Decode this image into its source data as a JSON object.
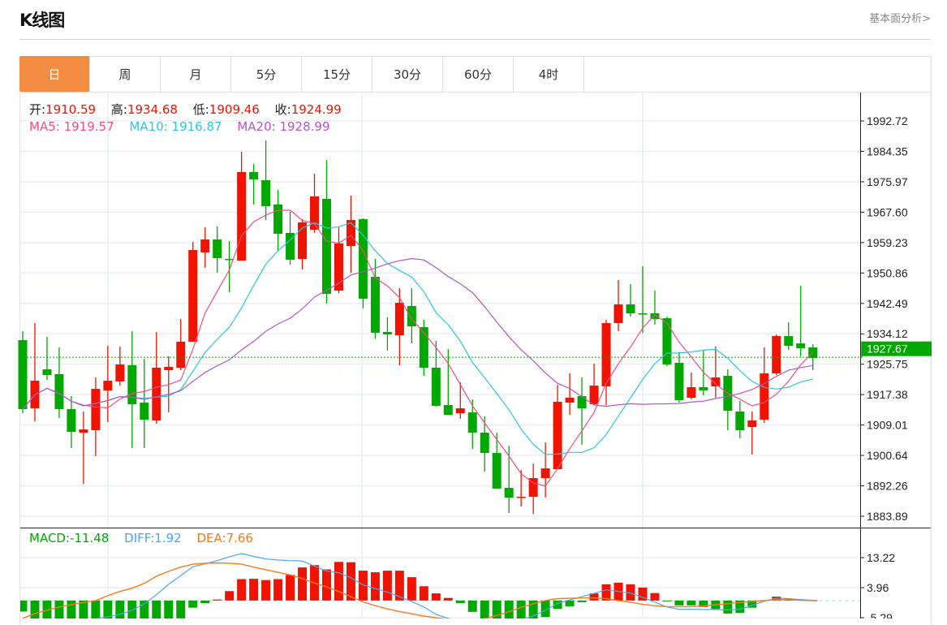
{
  "header": {
    "title": "K线图",
    "link": "基本面分析>"
  },
  "tabs": [
    {
      "label": "日",
      "active": true
    },
    {
      "label": "周"
    },
    {
      "label": "月"
    },
    {
      "label": "5分"
    },
    {
      "label": "15分"
    },
    {
      "label": "30分"
    },
    {
      "label": "60分"
    },
    {
      "label": "4时"
    }
  ],
  "info": {
    "open_label": "开:",
    "open": "1910.59",
    "high_label": "高:",
    "high": "1934.68",
    "low_label": "低:",
    "low": "1909.46",
    "close_label": "收:",
    "close": "1924.99",
    "ma5_label": "MA5:",
    "ma5": "1919.57",
    "ma10_label": "MA10:",
    "ma10": "1916.87",
    "ma20_label": "MA20:",
    "ma20": "1928.99"
  },
  "macd_info": {
    "macd_label": "MACD:",
    "macd": "-11.48",
    "diff_label": "DIFF:",
    "diff": "1.92",
    "dea_label": "DEA:",
    "dea": "7.66"
  },
  "colors": {
    "up": "#f01400",
    "down": "#00a800",
    "ma5": "#ef4e86",
    "ma10": "#2ec7d8",
    "ma20": "#b257c4",
    "diff": "#4aa8f0",
    "dea": "#f57c1e",
    "accent": "#f28c41"
  },
  "chart_data": {
    "type": "candlestick",
    "price_axis_ticks": [
      "1992.72",
      "1984.35",
      "1975.97",
      "1967.60",
      "1959.23",
      "1950.86",
      "1942.49",
      "1934.12",
      "1925.75",
      "1917.38",
      "1909.01",
      "1900.64",
      "1892.26",
      "1883.89"
    ],
    "price_range": [
      1883.89,
      1992.72
    ],
    "last_price": "1927.67",
    "macd_axis_ticks": [
      "13.22",
      "3.96",
      "-5.29"
    ],
    "macd_range": [
      -5.29,
      13.22
    ],
    "candles": [
      [
        1932.37,
        1934.83,
        1912.26,
        1913.38
      ],
      [
        1913.6,
        1937.07,
        1910.02,
        1921.2
      ],
      [
        1924.33,
        1933.27,
        1921.42,
        1922.76
      ],
      [
        1923.0,
        1930.36,
        1910.92,
        1913.38
      ],
      [
        1913.38,
        1916.95,
        1902.65,
        1907.12
      ],
      [
        1906.9,
        1912.71,
        1892.82,
        1907.79
      ],
      [
        1907.57,
        1922.09,
        1900.41,
        1918.96
      ],
      [
        1918.5,
        1930.81,
        1909.8,
        1921.2
      ],
      [
        1920.98,
        1930.59,
        1919.86,
        1925.67
      ],
      [
        1925.45,
        1934.83,
        1902.65,
        1914.72
      ],
      [
        1915.17,
        1927.23,
        1902.65,
        1910.47
      ],
      [
        1910.25,
        1934.61,
        1909.36,
        1924.78
      ],
      [
        1924.11,
        1927.9,
        1912.48,
        1925.0
      ],
      [
        1924.78,
        1938.19,
        1924.11,
        1931.93
      ],
      [
        1931.93,
        1959.42,
        1931.93,
        1957.18
      ],
      [
        1956.51,
        1963.44,
        1952.27,
        1960.09
      ],
      [
        1960.09,
        1963.67,
        1950.93,
        1954.95
      ],
      [
        1954.73,
        1959.64,
        1945.56,
        1954.5
      ],
      [
        1954.28,
        1984.23,
        1954.28,
        1978.64
      ],
      [
        1978.64,
        1980.87,
        1969.7,
        1976.63
      ],
      [
        1976.4,
        1987.36,
        1965.45,
        1969.25
      ],
      [
        1969.7,
        1973.72,
        1956.96,
        1961.65
      ],
      [
        1961.88,
        1967.69,
        1953.16,
        1954.5
      ],
      [
        1954.73,
        1965.67,
        1951.82,
        1964.78
      ],
      [
        1962.77,
        1978.19,
        1961.88,
        1971.93
      ],
      [
        1971.26,
        1981.99,
        1942.43,
        1945.11
      ],
      [
        1946.01,
        1963.44,
        1945.34,
        1958.97
      ],
      [
        1958.3,
        1972.16,
        1950.93,
        1965.45
      ],
      [
        1965.67,
        1965.9,
        1941.09,
        1943.77
      ],
      [
        1949.81,
        1954.73,
        1932.82,
        1934.39
      ],
      [
        1934.61,
        1938.63,
        1929.47,
        1933.94
      ],
      [
        1933.72,
        1946.68,
        1925.45,
        1942.66
      ],
      [
        1941.76,
        1946.68,
        1931.48,
        1936.17
      ],
      [
        1935.95,
        1937.96,
        1922.54,
        1924.78
      ],
      [
        1924.78,
        1932.15,
        1914.05,
        1914.27
      ],
      [
        1914.5,
        1929.92,
        1911.81,
        1911.81
      ],
      [
        1912.26,
        1920.75,
        1910.7,
        1913.6
      ],
      [
        1912.48,
        1916.06,
        1902.43,
        1906.9
      ],
      [
        1906.9,
        1911.37,
        1896.17,
        1901.31
      ],
      [
        1901.31,
        1906.9,
        1891.47,
        1891.47
      ],
      [
        1891.7,
        1903.32,
        1884.77,
        1889.02
      ],
      [
        1889.02,
        1896.62,
        1886.56,
        1889.24
      ],
      [
        1889.24,
        1898.4,
        1884.55,
        1894.38
      ],
      [
        1894.38,
        1904.21,
        1889.02,
        1897.06
      ],
      [
        1896.84,
        1920.08,
        1896.84,
        1915.39
      ],
      [
        1915.17,
        1923.21,
        1911.81,
        1916.51
      ],
      [
        1916.95,
        1922.09,
        1903.54,
        1913.6
      ],
      [
        1914.72,
        1925.89,
        1914.5,
        1919.86
      ],
      [
        1919.64,
        1937.96,
        1914.5,
        1937.07
      ],
      [
        1937.07,
        1948.91,
        1934.83,
        1942.21
      ],
      [
        1942.21,
        1947.8,
        1938.86,
        1939.75
      ],
      [
        1939.75,
        1952.71,
        1934.39,
        1939.53
      ],
      [
        1939.75,
        1946.01,
        1936.62,
        1938.19
      ],
      [
        1938.41,
        1938.86,
        1925.22,
        1925.67
      ],
      [
        1926.12,
        1929.02,
        1915.17,
        1915.84
      ],
      [
        1916.51,
        1923.44,
        1916.06,
        1919.42
      ],
      [
        1919.42,
        1929.47,
        1917.18,
        1918.52
      ],
      [
        1919.64,
        1930.59,
        1916.51,
        1922.09
      ],
      [
        1922.54,
        1924.33,
        1907.57,
        1912.93
      ],
      [
        1912.71,
        1915.62,
        1905.33,
        1907.57
      ],
      [
        1908.46,
        1912.71,
        1900.86,
        1910.25
      ],
      [
        1910.47,
        1930.36,
        1909.58,
        1923.21
      ],
      [
        1923.21,
        1933.94,
        1922.76,
        1933.49
      ],
      [
        1933.49,
        1937.29,
        1929.69,
        1930.81
      ],
      [
        1931.48,
        1947.35,
        1927.9,
        1930.14
      ],
      [
        1930.36,
        1931.26,
        1924.11,
        1927.46
      ]
    ],
    "macd_hist": [
      -3.4,
      -6,
      -7,
      -8,
      -8,
      -8,
      -8,
      -8,
      -7.5,
      -7,
      -6.5,
      -6,
      -5.8,
      -5.5,
      -2.2,
      -0.8,
      0.3,
      2.9,
      6.6,
      6.7,
      6.3,
      6.6,
      7.9,
      10.2,
      10.9,
      9.6,
      11.9,
      11.8,
      9.2,
      8.7,
      9.2,
      9.2,
      7.2,
      4.4,
      2.2,
      0.8,
      -0.8,
      -3.5,
      -6,
      -7,
      -7,
      -6.5,
      -6,
      -5.1,
      -2.6,
      -1.8,
      -0.5,
      2.2,
      5.0,
      5.5,
      5.0,
      4.0,
      2.3,
      -0.2,
      -1.5,
      -1.5,
      -2.0,
      -2.6,
      -4.0,
      -3.8,
      -2.2,
      0.1,
      1.2,
      0.5,
      0.2,
      0.1
    ],
    "diff": [
      -9,
      -8.5,
      -8,
      -7.5,
      -7,
      -6.2,
      -5.6,
      -5,
      -4.3,
      -3,
      -1,
      1.8,
      5,
      7.7,
      10.4,
      11.3,
      12.3,
      13.5,
      14.5,
      13.6,
      12.8,
      12.5,
      12.3,
      12.2,
      10.6,
      9.1,
      8.6,
      7,
      4.8,
      3.7,
      2.6,
      1.2,
      -0.3,
      -2.0,
      -4.3,
      -5.5,
      -6.5,
      -7,
      -7,
      -6.8,
      -6.5,
      -5.8,
      -4.8,
      -3,
      -0.9,
      0.2,
      1.2,
      2.2,
      3.3,
      2.8,
      2.3,
      1.0,
      -0.5,
      -2.0,
      -2.7,
      -2.7,
      -2.8,
      -2.8,
      -2.9,
      -2.7,
      -1.5,
      -0.2,
      0.8,
      0.6,
      0.3,
      0.1
    ],
    "dea": [
      -5.5,
      -4,
      -3,
      -2,
      -1.3,
      -0.6,
      0,
      1.5,
      2.8,
      3.8,
      5.3,
      7.5,
      9,
      10.3,
      11.2,
      11.5,
      11.6,
      11.5,
      11.2,
      10.3,
      9.5,
      8.7,
      7.9,
      6.8,
      5.4,
      4.2,
      2.8,
      1.2,
      -0.4,
      -1.6,
      -2.6,
      -3.4,
      -4.1,
      -4.8,
      -5.3,
      -5.8,
      -6.2,
      -6.3,
      -5.6,
      -4.6,
      -3.5,
      -2.1,
      -1,
      0,
      0.6,
      0.7,
      0.8,
      0.8,
      0.6,
      0,
      -0.5,
      -1.2,
      -1.6,
      -1.9,
      -1.9,
      -1.9,
      -1.7,
      -1.3,
      -1.0,
      -0.6,
      -0.3,
      0,
      0.3,
      0.3,
      0.1,
      0
    ]
  }
}
